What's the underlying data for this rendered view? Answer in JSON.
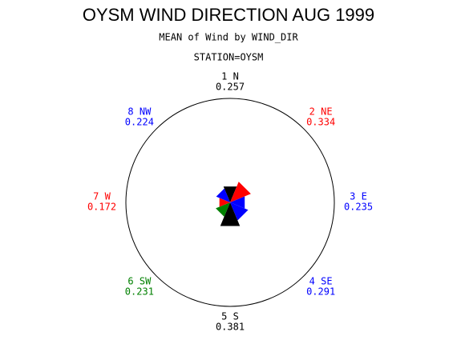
{
  "chart_data": {
    "type": "star",
    "title": "OYSM WIND DIRECTION AUG 1999",
    "subtitle": "MEAN of Wind by WIND_DIR",
    "station": "STATION=OYSM",
    "categories": [
      "1 N",
      "2 NE",
      "3 E",
      "4 SE",
      "5 S",
      "6 SW",
      "7 W",
      "8 NW"
    ],
    "values": [
      0.257,
      0.334,
      0.235,
      0.291,
      0.381,
      0.231,
      0.172,
      0.224
    ],
    "colors": [
      "#000000",
      "#ff0000",
      "#0000ff",
      "#0000ff",
      "#000000",
      "#008000",
      "#ff0000",
      "#0000ff"
    ],
    "rlim": [
      0,
      1.55
    ]
  }
}
